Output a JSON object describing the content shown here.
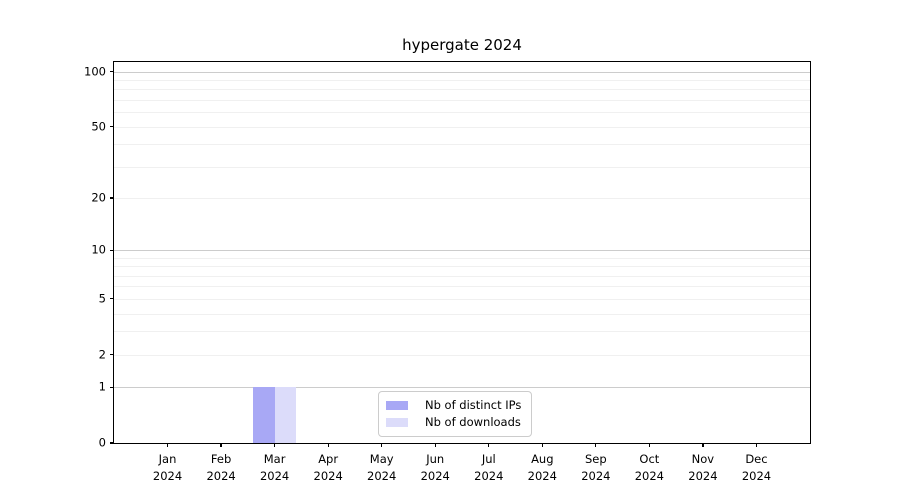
{
  "chart_data": {
    "type": "bar",
    "title": "hypergate 2024",
    "categories": [
      "Jan 2024",
      "Feb 2024",
      "Mar 2024",
      "Apr 2024",
      "May 2024",
      "Jun 2024",
      "Jul 2024",
      "Aug 2024",
      "Sep 2024",
      "Oct 2024",
      "Nov 2024",
      "Dec 2024"
    ],
    "series": [
      {
        "name": "Nb of distinct IPs",
        "color": "#a8a8f5",
        "values": [
          0,
          0,
          1,
          0,
          0,
          0,
          0,
          0,
          0,
          0,
          0,
          0
        ]
      },
      {
        "name": "Nb of downloads",
        "color": "#dcdcfa",
        "values": [
          0,
          0,
          1,
          0,
          0,
          0,
          0,
          0,
          0,
          0,
          0,
          0
        ]
      }
    ],
    "xlabel": "",
    "ylabel": "",
    "yscale": "log1p",
    "ylim": [
      0,
      113
    ],
    "y_ticks": [
      0,
      1,
      2,
      5,
      10,
      20,
      50,
      100
    ],
    "y_major_gridlines": [
      1,
      10,
      100
    ],
    "y_minor_gridlines": [
      2,
      3,
      4,
      5,
      6,
      7,
      8,
      9,
      20,
      30,
      40,
      50,
      60,
      70,
      80,
      90
    ],
    "grid": true,
    "legend_position": "lower center",
    "colors": {
      "major_grid": "#cccccc",
      "minor_grid": "#f0f0f0",
      "axis": "#000000",
      "text": "#000000",
      "background": "#ffffff"
    }
  }
}
